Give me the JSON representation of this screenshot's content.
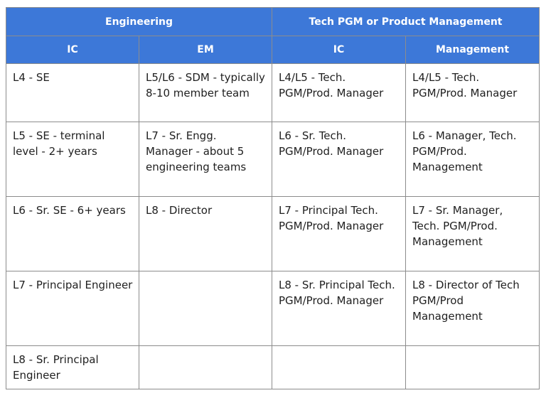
{
  "table": {
    "group_headers": [
      "Engineering",
      "Tech PGM or Product Management"
    ],
    "sub_headers": [
      "IC",
      "EM",
      "IC",
      "Management"
    ],
    "rows": [
      [
        "L4 - SE",
        "L5/L6 - SDM - typically 8-10 member team",
        "L4/L5 - Tech. PGM/Prod. Manager",
        "L4/L5 - Tech. PGM/Prod. Manager"
      ],
      [
        "L5 - SE - terminal level - 2+ years",
        "L7 - Sr. Engg. Manager - about 5 engineering teams",
        "L6 - Sr. Tech. PGM/Prod. Manager",
        "L6 - Manager, Tech. PGM/Prod. Management"
      ],
      [
        "L6 - Sr. SE - 6+ years",
        "L8 - Director",
        "L7 - Principal Tech. PGM/Prod. Manager",
        "L7 - Sr. Manager, Tech. PGM/Prod. Management"
      ],
      [
        "L7 - Principal Engineer",
        "",
        "L8 - Sr. Principal Tech. PGM/Prod. Manager",
        "L8 - Director of Tech PGM/Prod Management"
      ],
      [
        "L8 - Sr. Principal Engineer",
        "",
        "",
        ""
      ]
    ]
  },
  "colors": {
    "header_bg": "#3d78d8",
    "header_text": "#ffffff",
    "border": "#8c8c8c",
    "body_text": "#1f1f1f"
  }
}
